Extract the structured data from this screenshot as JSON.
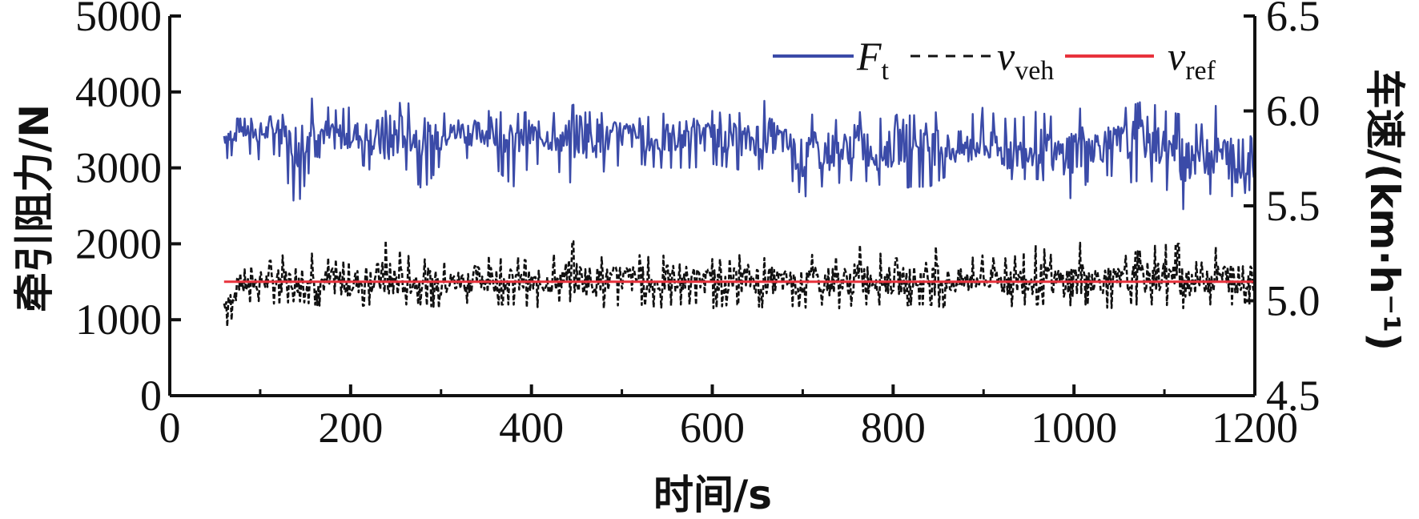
{
  "chart_data": {
    "type": "line",
    "xlabel": "时间/s",
    "ylabel_left": "牵引阻力/N",
    "ylabel_right": "车速/(km·h⁻¹)",
    "xlim": [
      0,
      1200
    ],
    "ylim_left": [
      0,
      5000
    ],
    "ylim_right": [
      4.5,
      6.5
    ],
    "x_ticks": [
      "0",
      "200",
      "400",
      "600",
      "800",
      "1000",
      "1200"
    ],
    "y_left_ticks": [
      "0",
      "1000",
      "2000",
      "3000",
      "4000",
      "5000"
    ],
    "y_right_ticks": [
      "4.5",
      "5.0",
      "5.5",
      "6.0",
      "6.5"
    ],
    "legend_position": "top-right",
    "grid": false,
    "series": [
      {
        "name": "Ft",
        "legend_main": "F",
        "legend_sub": "t",
        "axis": "left",
        "style": "solid",
        "color": "#3b4ba8",
        "x": [
          60,
          80,
          100,
          120,
          140,
          160,
          180,
          200,
          220,
          240,
          260,
          280,
          300,
          320,
          340,
          360,
          380,
          400,
          420,
          440,
          460,
          480,
          500,
          520,
          540,
          560,
          580,
          600,
          620,
          640,
          660,
          680,
          700,
          720,
          740,
          760,
          780,
          800,
          820,
          840,
          860,
          880,
          900,
          920,
          940,
          960,
          980,
          1000,
          1020,
          1040,
          1060,
          1080,
          1100,
          1120,
          1140,
          1160,
          1180,
          1200
        ],
        "y": [
          3400,
          3500,
          3450,
          3500,
          3300,
          3550,
          3400,
          3450,
          3400,
          3350,
          3500,
          3350,
          3400,
          3500,
          3450,
          3500,
          3300,
          3450,
          3400,
          3350,
          3500,
          3350,
          3450,
          3400,
          3350,
          3400,
          3450,
          3400,
          3400,
          3350,
          3450,
          3350,
          3100,
          3250,
          3200,
          3350,
          3200,
          3250,
          3450,
          3300,
          3250,
          3250,
          3300,
          3200,
          3200,
          3300,
          3150,
          3250,
          3300,
          3300,
          3350,
          3400,
          3250,
          3150,
          3250,
          3200,
          3100,
          3150
        ],
        "y_high": [
          3650,
          3650,
          3650,
          3700,
          3700,
          3950,
          3750,
          3800,
          3750,
          3750,
          3900,
          3650,
          3700,
          3800,
          3750,
          3750,
          3700,
          3750,
          3700,
          3800,
          3900,
          3700,
          3800,
          3650,
          3700,
          3750,
          3800,
          3750,
          3700,
          3750,
          3900,
          3700,
          3600,
          3800,
          3600,
          3750,
          3650,
          3650,
          3900,
          3750,
          3700,
          3650,
          3800,
          3650,
          3650,
          3750,
          3650,
          3800,
          3750,
          3750,
          3800,
          3900,
          3750,
          3700,
          3900,
          3800,
          3700,
          3750
        ],
        "y_low": [
          3100,
          3250,
          3100,
          3200,
          2450,
          3150,
          3100,
          3100,
          3000,
          2450,
          3000,
          2700,
          3050,
          3150,
          3100,
          3000,
          2750,
          3050,
          3050,
          2850,
          2550,
          2950,
          3050,
          3050,
          3000,
          3000,
          3000,
          3050,
          3000,
          2950,
          3000,
          3000,
          2600,
          2750,
          2800,
          2850,
          2800,
          2700,
          2750,
          2750,
          2900,
          2750,
          2650,
          2850,
          2850,
          2850,
          2800,
          2550,
          2900,
          2900,
          2800,
          2850,
          2750,
          2450,
          2600,
          2700,
          2600,
          2750
        ]
      },
      {
        "name": "vveh",
        "legend_main": "v",
        "legend_sub": "veh",
        "axis": "right",
        "style": "dashed",
        "color": "#111111",
        "x": [
          60,
          80,
          100,
          120,
          140,
          160,
          180,
          200,
          220,
          240,
          260,
          280,
          300,
          320,
          340,
          360,
          380,
          400,
          420,
          440,
          460,
          480,
          500,
          520,
          540,
          560,
          580,
          600,
          620,
          640,
          660,
          680,
          700,
          720,
          740,
          760,
          780,
          800,
          820,
          840,
          860,
          880,
          900,
          920,
          940,
          960,
          980,
          1000,
          1020,
          1040,
          1060,
          1080,
          1100,
          1120,
          1140,
          1160,
          1180,
          1200
        ],
        "y": [
          4.98,
          5.08,
          5.1,
          5.1,
          5.12,
          5.11,
          5.1,
          5.09,
          5.12,
          5.11,
          5.1,
          5.11,
          5.09,
          5.1,
          5.12,
          5.11,
          5.1,
          5.09,
          5.1,
          5.13,
          5.11,
          5.1,
          5.12,
          5.11,
          5.1,
          5.12,
          5.11,
          5.1,
          5.1,
          5.12,
          5.11,
          5.1,
          5.09,
          5.11,
          5.1,
          5.11,
          5.12,
          5.1,
          5.11,
          5.12,
          5.1,
          5.1,
          5.11,
          5.1,
          5.11,
          5.12,
          5.1,
          5.11,
          5.12,
          5.1,
          5.11,
          5.12,
          5.13,
          5.11,
          5.12,
          5.13,
          5.12,
          5.11
        ],
        "y_high": [
          5.0,
          5.16,
          5.2,
          5.22,
          5.3,
          5.24,
          5.22,
          5.2,
          5.26,
          5.32,
          5.24,
          5.22,
          5.2,
          5.22,
          5.26,
          5.22,
          5.24,
          5.2,
          5.22,
          5.32,
          5.3,
          5.22,
          5.26,
          5.24,
          5.22,
          5.28,
          5.22,
          5.22,
          5.22,
          5.26,
          5.22,
          5.22,
          5.2,
          5.28,
          5.22,
          5.3,
          5.26,
          5.22,
          5.24,
          5.32,
          5.22,
          5.22,
          5.24,
          5.22,
          5.24,
          5.3,
          5.22,
          5.34,
          5.24,
          5.22,
          5.24,
          5.28,
          5.3,
          5.3,
          5.3,
          5.28,
          5.26,
          5.22
        ],
        "y_low": [
          4.84,
          4.98,
          5.0,
          4.98,
          5.0,
          4.98,
          4.96,
          4.96,
          4.98,
          4.96,
          4.98,
          4.98,
          4.96,
          4.98,
          5.0,
          4.98,
          4.98,
          4.96,
          4.98,
          5.0,
          4.98,
          4.96,
          4.98,
          4.98,
          4.96,
          4.98,
          4.98,
          4.96,
          4.98,
          4.98,
          4.96,
          4.98,
          4.96,
          4.98,
          4.96,
          4.98,
          4.98,
          4.96,
          4.98,
          4.98,
          4.96,
          4.98,
          4.98,
          4.96,
          4.98,
          4.98,
          4.96,
          4.98,
          4.98,
          4.96,
          4.98,
          4.98,
          4.98,
          4.96,
          4.98,
          4.98,
          4.98,
          4.98
        ]
      },
      {
        "name": "vref",
        "legend_main": "v",
        "legend_sub": "ref",
        "axis": "right",
        "style": "solid",
        "color": "#e8323c",
        "x": [
          60,
          1200
        ],
        "y": [
          5.1,
          5.1
        ]
      }
    ]
  }
}
